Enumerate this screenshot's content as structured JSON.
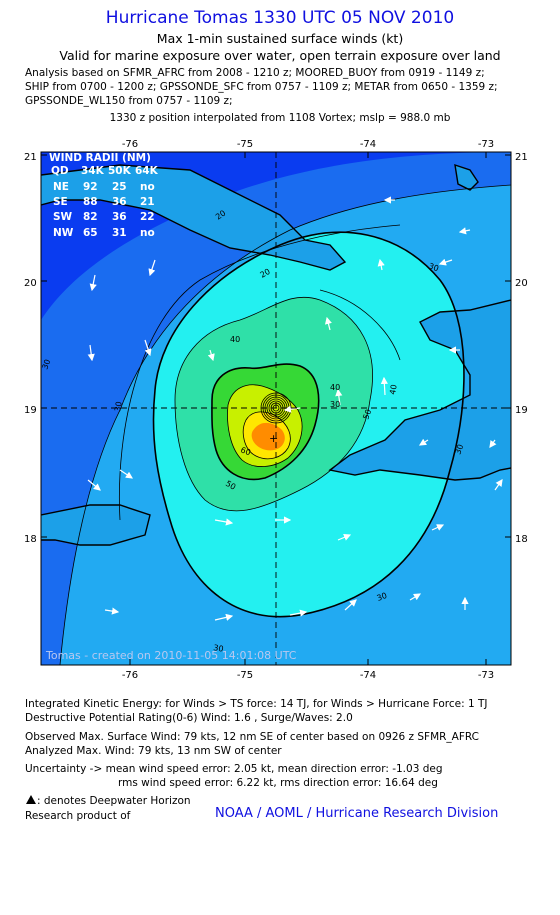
{
  "header": {
    "title": "Hurricane Tomas 1330 UTC 05 NOV 2010",
    "subtitle1": "Max 1-min sustained surface winds (kt)",
    "subtitle2": "Valid for marine exposure over water, open terrain exposure over land",
    "analysis_lines": [
      "Analysis based on SFMR_AFRC from 2008 - 1210 z; MOORED_BUOY from 0919 - 1149 z;",
      "SHIP from 0700 - 1200 z; GPSSONDE_SFC from 0757 - 1109 z; METAR from 0650 - 1359 z;",
      "GPSSONDE_WL150 from 0757 - 1109 z;"
    ],
    "position_line": "1330 z position interpolated from 1108 Vortex; mslp = 988.0 mb"
  },
  "map": {
    "lon_ticks": [
      "-76",
      "-75",
      "-74",
      "-73"
    ],
    "lat_ticks": [
      "21",
      "20",
      "19",
      "18"
    ],
    "contour_labels": [
      "20",
      "20",
      "30",
      "30",
      "30",
      "30",
      "30",
      "30",
      "30",
      "40",
      "40",
      "40",
      "50",
      "50",
      "60"
    ],
    "watermark": "Tomas - created on 2010-11-05 14:01:08 UTC",
    "colors": {
      "ocean_deep": "#0a3cf0",
      "level_20": "#1a6cf0",
      "level_30": "#22aaf2",
      "level_40": "#23f0f0",
      "level_50": "#2fe0a8",
      "level_60": "#36d836",
      "level_70": "#c8f000",
      "level_80": "#ffe600",
      "level_90": "#ff8c00",
      "land": "#1ca0e8"
    }
  },
  "wind_radii": {
    "title": "WIND RADII (NM)",
    "header": [
      "QD",
      "34K",
      "50K",
      "64K"
    ],
    "rows": [
      [
        "NE",
        "92",
        "25",
        "no"
      ],
      [
        "SE",
        "88",
        "36",
        "21"
      ],
      [
        "SW",
        "82",
        "36",
        "22"
      ],
      [
        "NW",
        "65",
        "31",
        "no"
      ]
    ]
  },
  "footer": {
    "ike": "Integrated Kinetic Energy:  for Winds > TS force: 14 TJ,  for Winds > Hurricane Force: 1 TJ",
    "dpr": "Destructive Potential Rating(0-6)   Wind: 1.6 , Surge/Waves: 2.0",
    "observed": "Observed Max. Surface Wind: 79 kts, 12 nm SE of center based on 0926 z SFMR_AFRC",
    "analyzed": "Analyzed Max. Wind: 79 kts, 13 nm SW of center",
    "uncertainty1": "Uncertainty -> mean wind speed error: 2.05 kt,   mean direction error:  -1.03 deg",
    "uncertainty2": "rms wind speed error: 6.22 kt,   rms direction error:  16.64 deg",
    "deepwater": ": denotes Deepwater Horizon",
    "research": "Research product of",
    "credit": "NOAA / AOML / Hurricane Research Division"
  }
}
